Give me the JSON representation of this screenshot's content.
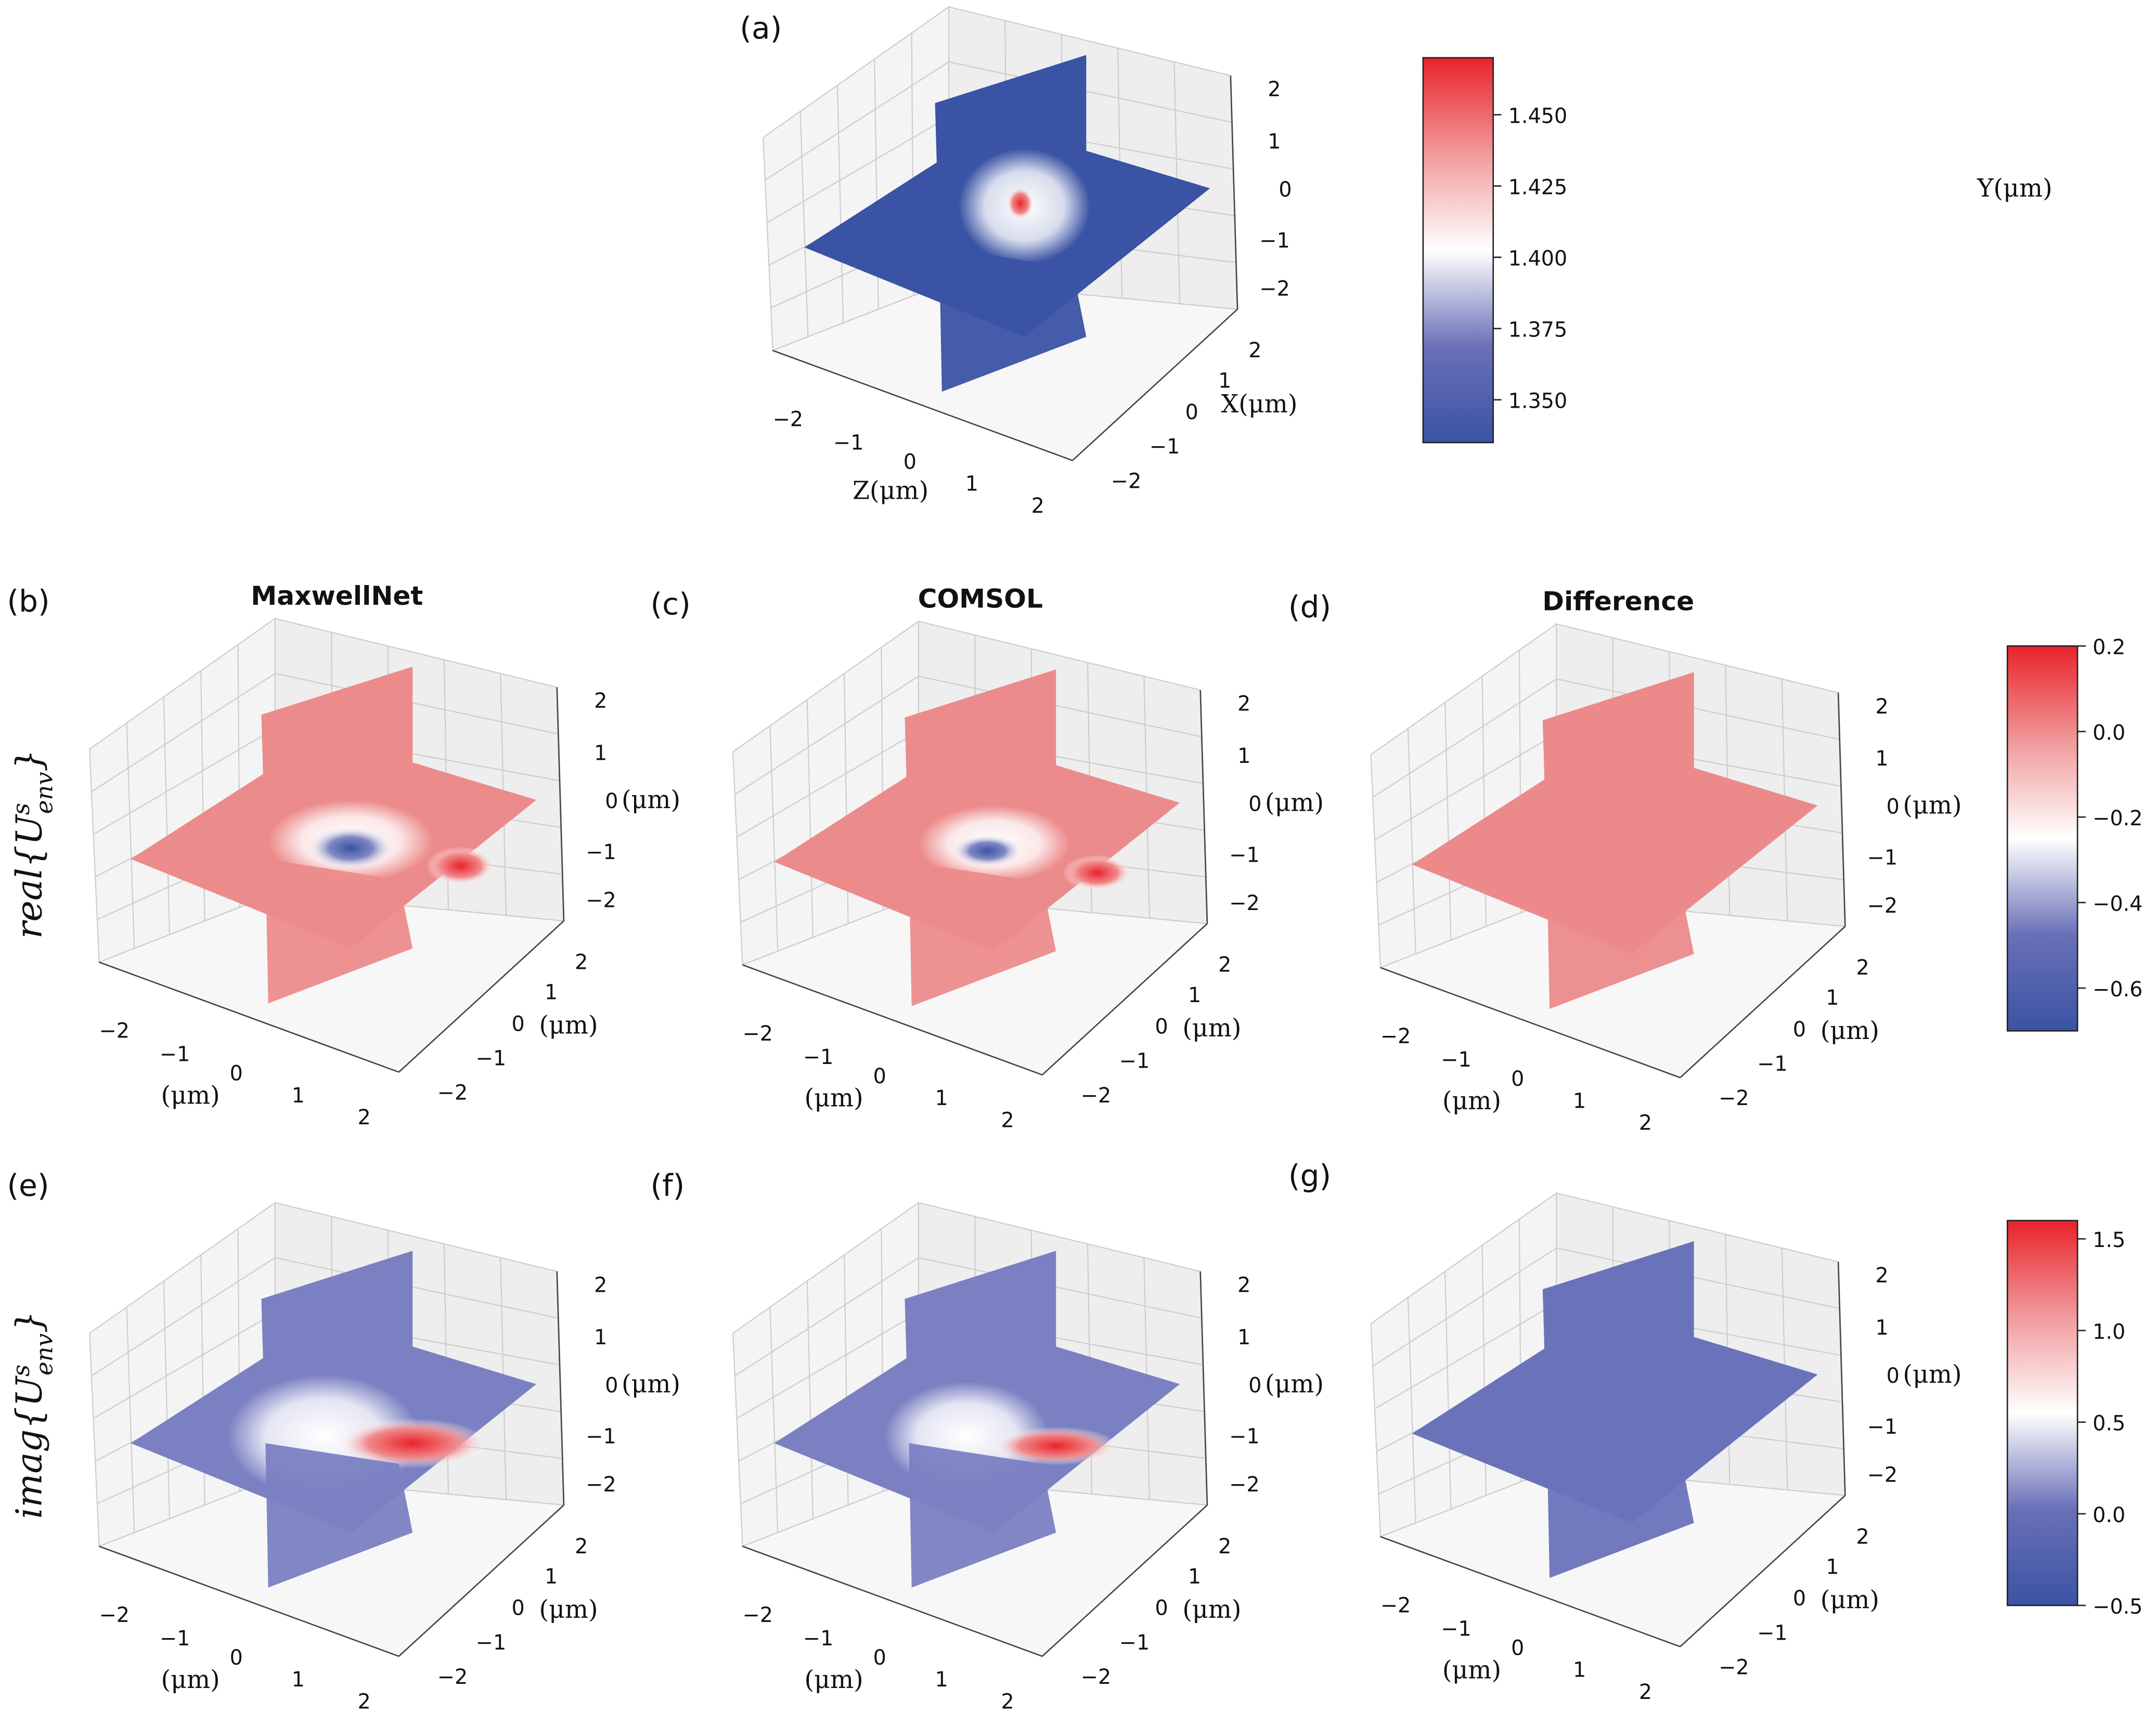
{
  "chart_data": {
    "type": "heatmap",
    "description_type": "3d-slice",
    "panels": [
      {
        "id": "a",
        "label": "(a)",
        "title": "",
        "colorbar": "ri",
        "y_ticks": [
          "2",
          "1",
          "0",
          "−1",
          "−2"
        ],
        "x_ticks": [
          "2",
          "1",
          "0",
          "−1",
          "−2"
        ],
        "z_ticks": [
          "−2",
          "−1",
          "0",
          "1",
          "2"
        ],
        "y_axis": "Y(μm)",
        "x_axis": "X(μm)",
        "z_axis": "Z(μm)"
      },
      {
        "id": "b",
        "label": "(b)",
        "title": "MaxwellNet",
        "colorbar": "real",
        "y_ticks": [
          "2",
          "1",
          "0",
          "−1",
          "−2"
        ],
        "x_ticks": [
          "2",
          "1",
          "0",
          "−1",
          "−2"
        ],
        "z_ticks": [
          "−2",
          "−1",
          "0",
          "1",
          "2"
        ],
        "y_axis": "(μm)",
        "x_axis": "(μm)",
        "z_axis": "(μm)"
      },
      {
        "id": "c",
        "label": "(c)",
        "title": "COMSOL",
        "colorbar": "real",
        "y_ticks": [
          "2",
          "1",
          "0",
          "−1",
          "−2"
        ],
        "x_ticks": [
          "2",
          "1",
          "0",
          "−1",
          "−2"
        ],
        "z_ticks": [
          "−2",
          "−1",
          "0",
          "1",
          "2"
        ],
        "y_axis": "(μm)",
        "x_axis": "(μm)",
        "z_axis": "(μm)"
      },
      {
        "id": "d",
        "label": "(d)",
        "title": "Difference",
        "colorbar": "real",
        "y_ticks": [
          "2",
          "1",
          "0",
          "−1",
          "−2"
        ],
        "x_ticks": [
          "2",
          "1",
          "0",
          "−1",
          "−2"
        ],
        "z_ticks": [
          "−2",
          "−1",
          "0",
          "1",
          "2"
        ],
        "y_axis": "(μm)",
        "x_axis": "(μm)",
        "z_axis": "(μm)"
      },
      {
        "id": "e",
        "label": "(e)",
        "title": "",
        "colorbar": "imag",
        "y_ticks": [
          "2",
          "1",
          "0",
          "−1",
          "−2"
        ],
        "x_ticks": [
          "2",
          "1",
          "0",
          "−1",
          "−2"
        ],
        "z_ticks": [
          "−2",
          "−1",
          "0",
          "1",
          "2"
        ],
        "y_axis": "(μm)",
        "x_axis": "(μm)",
        "z_axis": "(μm)"
      },
      {
        "id": "f",
        "label": "(f)",
        "title": "",
        "colorbar": "imag",
        "y_ticks": [
          "2",
          "1",
          "0",
          "−1",
          "−2"
        ],
        "x_ticks": [
          "2",
          "1",
          "0",
          "−1",
          "−2"
        ],
        "z_ticks": [
          "−2",
          "−1",
          "0",
          "1",
          "2"
        ],
        "y_axis": "(μm)",
        "x_axis": "(μm)",
        "z_axis": "(μm)"
      },
      {
        "id": "g",
        "label": "(g)",
        "title": "",
        "colorbar": "imag",
        "y_ticks": [
          "2",
          "1",
          "0",
          "−1",
          "−2"
        ],
        "x_ticks": [
          "2",
          "1",
          "0",
          "−1",
          "−2"
        ],
        "z_ticks": [
          "−2",
          "−1",
          "0",
          "1",
          "2"
        ],
        "y_axis": "(μm)",
        "x_axis": "(μm)",
        "z_axis": "(μm)"
      }
    ],
    "rows": [
      {
        "prefix": "real{U",
        "sup": "s",
        "sub": "env",
        "suffix": "}"
      },
      {
        "prefix": "imag{U",
        "sup": "s",
        "sub": "env",
        "suffix": "}"
      }
    ],
    "colorbars": {
      "ri": {
        "range": [
          1.335,
          1.47
        ],
        "ticks": [
          "1.450",
          "1.425",
          "1.400",
          "1.375",
          "1.350"
        ],
        "tick_values": [
          1.45,
          1.425,
          1.4,
          1.375,
          1.35
        ]
      },
      "real": {
        "range": [
          -0.7,
          0.2
        ],
        "ticks": [
          "0.2",
          "0.0",
          "−0.2",
          "−0.4",
          "−0.6"
        ],
        "tick_values": [
          0.2,
          0.0,
          -0.2,
          -0.4,
          -0.6
        ]
      },
      "imag": {
        "range": [
          -0.5,
          1.6
        ],
        "ticks": [
          "1.5",
          "1.0",
          "0.5",
          "0.0",
          "−0.5"
        ],
        "tick_values": [
          1.5,
          1.0,
          0.5,
          0.0,
          -0.5
        ]
      }
    },
    "colormap": {
      "low": "#3a53a4",
      "mid": "#ffffff",
      "high": "#e8232a"
    }
  }
}
